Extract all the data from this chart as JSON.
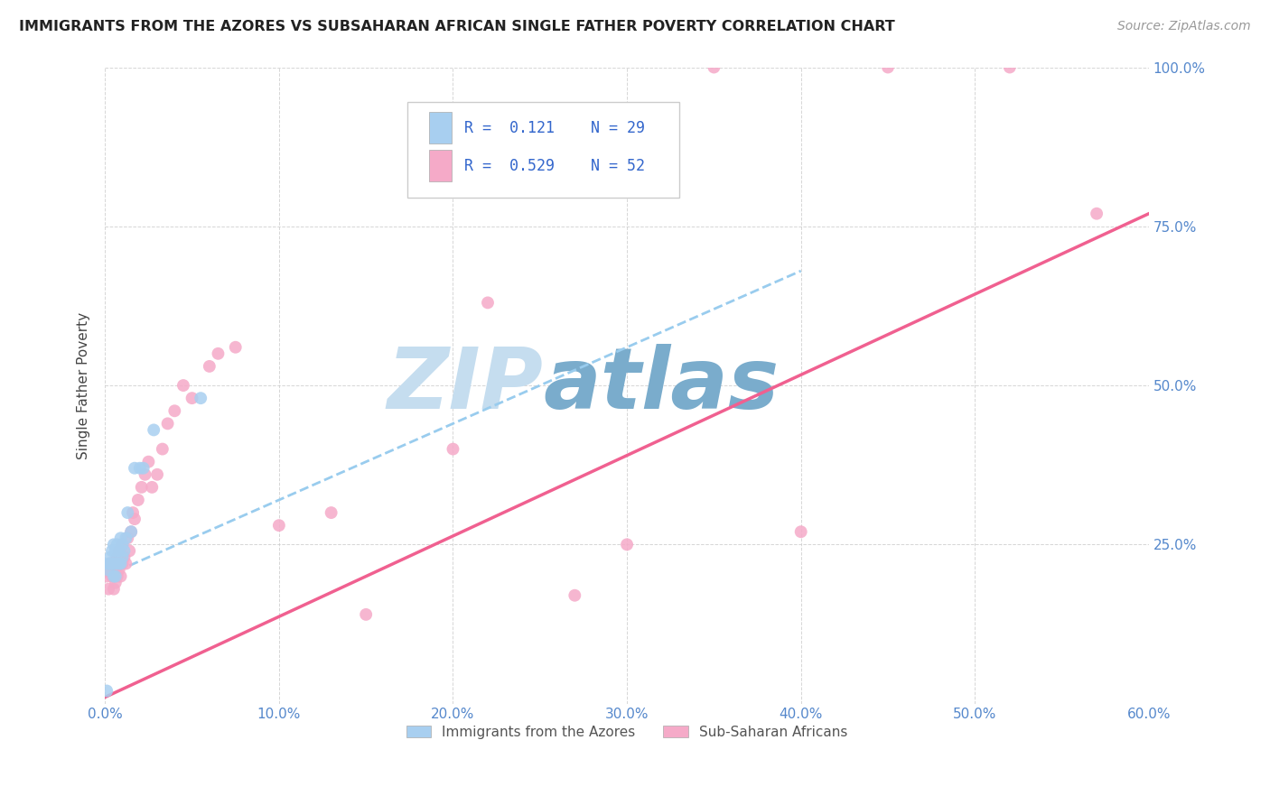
{
  "title": "IMMIGRANTS FROM THE AZORES VS SUBSAHARAN AFRICAN SINGLE FATHER POVERTY CORRELATION CHART",
  "source": "Source: ZipAtlas.com",
  "ylabel": "Single Father Poverty",
  "R1": "0.121",
  "N1": "29",
  "R2": "0.529",
  "N2": "52",
  "color_blue": "#a8cff0",
  "color_pink": "#f5aac8",
  "color_line_blue": "#99ccee",
  "color_line_pink": "#f06090",
  "watermark_zip": "ZIP",
  "watermark_atlas": "atlas",
  "watermark_color_zip": "#c5ddef",
  "watermark_color_atlas": "#7aaccc",
  "legend_label1": "Immigrants from the Azores",
  "legend_label2": "Sub-Saharan Africans",
  "xlim": [
    0,
    0.6
  ],
  "ylim": [
    0,
    1.0
  ],
  "x_ticks": [
    0.0,
    0.1,
    0.2,
    0.3,
    0.4,
    0.5,
    0.6
  ],
  "x_tick_labels": [
    "0.0%",
    "10.0%",
    "20.0%",
    "30.0%",
    "40.0%",
    "50.0%",
    "60.0%"
  ],
  "y_ticks": [
    0.0,
    0.25,
    0.5,
    0.75,
    1.0
  ],
  "y_tick_labels": [
    "",
    "25.0%",
    "50.0%",
    "75.0%",
    "100.0%"
  ],
  "blue_scatter_x": [
    0.001,
    0.002,
    0.002,
    0.003,
    0.003,
    0.004,
    0.004,
    0.005,
    0.005,
    0.006,
    0.006,
    0.006,
    0.007,
    0.007,
    0.008,
    0.008,
    0.009,
    0.009,
    0.01,
    0.01,
    0.011,
    0.012,
    0.013,
    0.015,
    0.017,
    0.02,
    0.022,
    0.028,
    0.055
  ],
  "blue_scatter_y": [
    0.02,
    0.21,
    0.22,
    0.22,
    0.23,
    0.22,
    0.24,
    0.2,
    0.25,
    0.2,
    0.22,
    0.24,
    0.22,
    0.25,
    0.22,
    0.24,
    0.22,
    0.26,
    0.23,
    0.25,
    0.24,
    0.26,
    0.3,
    0.27,
    0.37,
    0.37,
    0.37,
    0.43,
    0.48
  ],
  "pink_scatter_x": [
    0.001,
    0.002,
    0.003,
    0.003,
    0.004,
    0.004,
    0.005,
    0.005,
    0.005,
    0.006,
    0.006,
    0.007,
    0.007,
    0.008,
    0.008,
    0.009,
    0.009,
    0.01,
    0.01,
    0.011,
    0.012,
    0.013,
    0.014,
    0.015,
    0.016,
    0.017,
    0.019,
    0.021,
    0.023,
    0.025,
    0.027,
    0.03,
    0.033,
    0.036,
    0.04,
    0.045,
    0.05,
    0.06,
    0.065,
    0.075,
    0.1,
    0.13,
    0.15,
    0.2,
    0.22,
    0.27,
    0.3,
    0.35,
    0.4,
    0.45,
    0.52,
    0.57
  ],
  "pink_scatter_y": [
    0.2,
    0.18,
    0.21,
    0.22,
    0.2,
    0.22,
    0.18,
    0.2,
    0.22,
    0.19,
    0.22,
    0.2,
    0.23,
    0.21,
    0.24,
    0.2,
    0.23,
    0.22,
    0.25,
    0.23,
    0.22,
    0.26,
    0.24,
    0.27,
    0.3,
    0.29,
    0.32,
    0.34,
    0.36,
    0.38,
    0.34,
    0.36,
    0.4,
    0.44,
    0.46,
    0.5,
    0.48,
    0.53,
    0.55,
    0.56,
    0.28,
    0.3,
    0.14,
    0.4,
    0.63,
    0.17,
    0.25,
    1.0,
    0.27,
    1.0,
    1.0,
    0.77
  ],
  "pink_line_x0": 0.0,
  "pink_line_x1": 0.6,
  "pink_line_y0": 0.01,
  "pink_line_y1": 0.77,
  "blue_line_x0": 0.0,
  "blue_line_x1": 0.4,
  "blue_line_y0": 0.2,
  "blue_line_y1": 0.68
}
